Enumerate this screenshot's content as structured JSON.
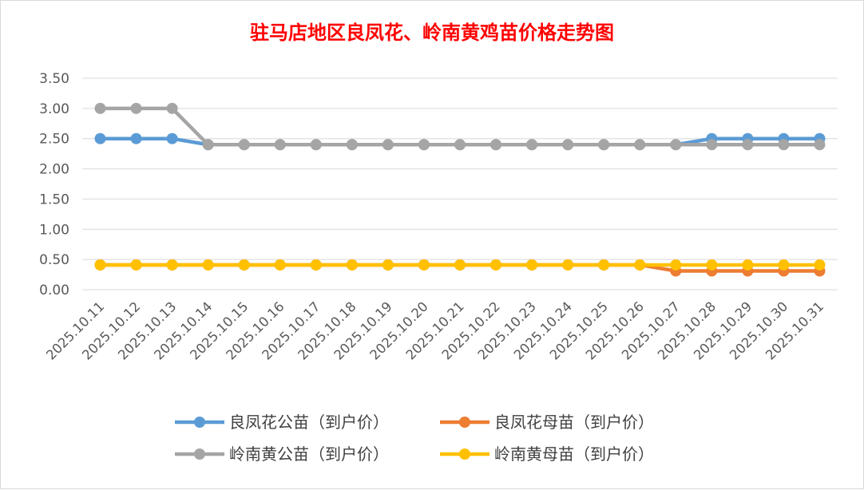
{
  "chart_data": {
    "type": "line",
    "title": "驻马店地区良凤花、岭南黄鸡苗价格走势图",
    "xlabel": "",
    "ylabel": "",
    "ylim": [
      0,
      3.5
    ],
    "yticks": [
      "0.00",
      "0.50",
      "1.00",
      "1.50",
      "2.00",
      "2.50",
      "3.00",
      "3.50"
    ],
    "grid": "horizontal",
    "legend_position": "bottom",
    "x": [
      "2025.10.11",
      "2025.10.12",
      "2025.10.13",
      "2025.10.14",
      "2025.10.15",
      "2025.10.16",
      "2025.10.17",
      "2025.10.18",
      "2025.10.19",
      "2025.10.20",
      "2025.10.21",
      "2025.10.22",
      "2025.10.23",
      "2025.10.24",
      "2025.10.25",
      "2025.10.26",
      "2025.10.27",
      "2025.10.28",
      "2025.10.29",
      "2025.10.30",
      "2025.10.31"
    ],
    "series": [
      {
        "name": "良凤花公苗（到户价）",
        "color": "#5b9bd5",
        "values": [
          2.5,
          2.5,
          2.5,
          2.4,
          2.4,
          2.4,
          2.4,
          2.4,
          2.4,
          2.4,
          2.4,
          2.4,
          2.4,
          2.4,
          2.4,
          2.4,
          2.4,
          2.5,
          2.5,
          2.5,
          2.5
        ]
      },
      {
        "name": "良凤花母苗（到户价）",
        "color": "#ed7d31",
        "values": [
          0.41,
          0.41,
          0.41,
          0.41,
          0.41,
          0.41,
          0.41,
          0.41,
          0.41,
          0.41,
          0.41,
          0.41,
          0.41,
          0.41,
          0.41,
          0.41,
          0.31,
          0.31,
          0.31,
          0.31,
          0.31
        ]
      },
      {
        "name": "岭南黄公苗（到户价）",
        "color": "#a5a5a5",
        "values": [
          3.0,
          3.0,
          3.0,
          2.4,
          2.4,
          2.4,
          2.4,
          2.4,
          2.4,
          2.4,
          2.4,
          2.4,
          2.4,
          2.4,
          2.4,
          2.4,
          2.4,
          2.4,
          2.4,
          2.4,
          2.4
        ]
      },
      {
        "name": "岭南黄母苗（到户价）",
        "color": "#ffc000",
        "values": [
          0.41,
          0.41,
          0.41,
          0.41,
          0.41,
          0.41,
          0.41,
          0.41,
          0.41,
          0.41,
          0.41,
          0.41,
          0.41,
          0.41,
          0.41,
          0.41,
          0.41,
          0.41,
          0.41,
          0.41,
          0.41
        ]
      }
    ]
  }
}
